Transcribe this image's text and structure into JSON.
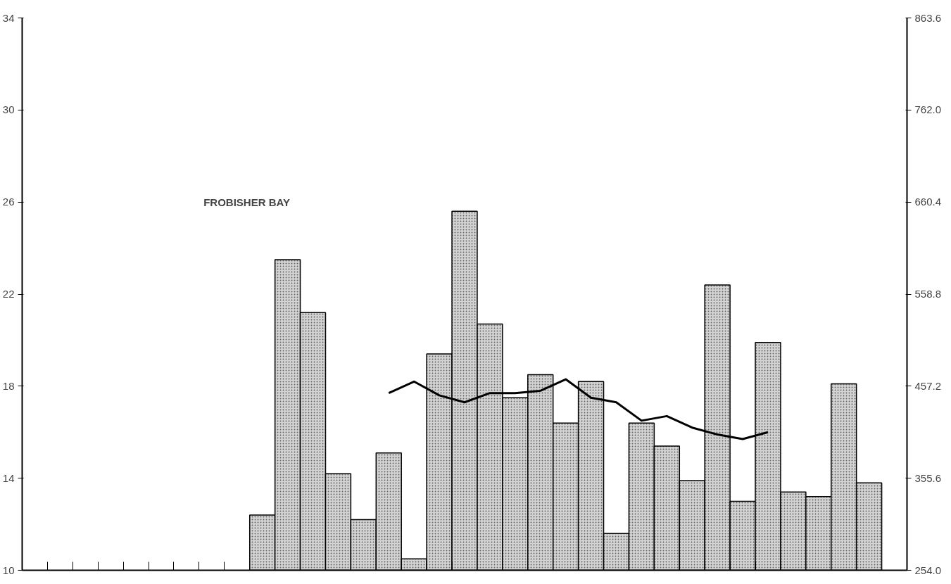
{
  "chart_data": {
    "type": "bar",
    "categories": [
      null,
      null,
      null,
      null,
      null,
      null,
      null,
      null,
      null,
      null,
      null,
      null,
      null,
      null,
      null,
      null,
      null,
      null,
      null,
      null,
      null,
      null,
      null,
      null,
      null,
      null,
      null,
      null,
      null,
      null,
      null,
      null,
      null,
      null,
      null
    ],
    "series": [
      {
        "color": "#d4d4d4",
        "values": [
          null,
          null,
          null,
          null,
          null,
          null,
          null,
          null,
          null,
          12.4,
          23.5,
          21.2,
          14.2,
          12.2,
          15.1,
          10.5,
          19.4,
          25.6,
          20.7,
          17.5,
          18.5,
          16.4,
          18.2,
          11.6,
          16.4,
          15.4,
          13.9,
          22.4,
          13.0,
          19.9,
          13.4,
          13.2,
          18.1,
          13.8,
          null
        ]
      },
      {
        "type": "line",
        "color": "#000000",
        "values": [
          null,
          null,
          null,
          null,
          null,
          null,
          null,
          null,
          null,
          null,
          null,
          null,
          null,
          null,
          17.7,
          18.2,
          17.6,
          17.3,
          17.7,
          17.7,
          17.8,
          18.3,
          17.5,
          17.3,
          16.5,
          16.7,
          16.2,
          15.9,
          15.7,
          16.0,
          null,
          null,
          null,
          null,
          null
        ]
      }
    ],
    "ylim": [
      10,
      34
    ],
    "yticks": [
      10,
      14,
      18,
      22,
      26,
      30,
      34
    ],
    "y2lim": [
      254.0,
      863.6
    ],
    "y2ticks": [
      {
        "value": 254.0,
        "label": "254.0"
      },
      {
        "value": 355.6,
        "label": "355.6"
      },
      {
        "value": 457.2,
        "label": "457.2"
      },
      {
        "value": 558.8,
        "label": "558.8"
      },
      {
        "value": 660.4,
        "label": "660.4"
      },
      {
        "value": 762.0,
        "label": "762.0"
      },
      {
        "value": 863.6,
        "label": "863.6"
      }
    ],
    "annotations": [
      "FROBISHER BAY"
    ],
    "grid": false,
    "marker": "none",
    "line_style": "solid"
  }
}
